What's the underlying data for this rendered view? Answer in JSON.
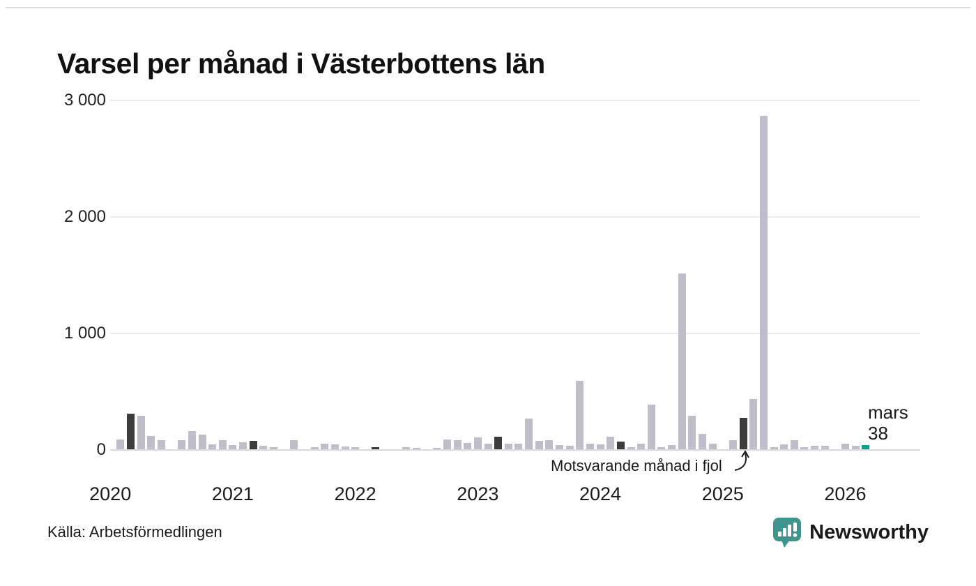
{
  "title": "Varsel per månad i Västerbottens län",
  "source": "Källa: Arbetsförmedlingen",
  "annotation": {
    "text": "Motsvarande månad i fjol"
  },
  "latest_label": {
    "month": "mars",
    "value": "38"
  },
  "brand": {
    "name": "Newsworthy",
    "color": "#3f948d"
  },
  "colors": {
    "bar": "#c0bdcb",
    "highlight_bar": "#3b3b3b",
    "latest_bar": "#109b8e",
    "grid": "#ebebf0",
    "axis": "#d8d8de",
    "text": "#1a1a1a"
  },
  "chart_data": {
    "type": "bar",
    "title": "Varsel per månad i Västerbottens län",
    "xlabel": "",
    "ylabel": "",
    "ylim": [
      0,
      3000
    ],
    "y_ticks": [
      0,
      1000,
      2000,
      3000
    ],
    "y_tick_labels": [
      "0",
      "1 000",
      "2 000",
      "3 000"
    ],
    "x_tick_labels": [
      "2020",
      "2021",
      "2022",
      "2023",
      "2024",
      "2025",
      "2026"
    ],
    "grid": "horizontal",
    "legend": "none",
    "years": [
      {
        "year": "2020",
        "values": [
          0,
          85,
          305,
          290,
          115,
          80,
          0,
          75,
          155,
          125,
          40,
          75
        ]
      },
      {
        "year": "2021",
        "values": [
          35,
          60,
          70,
          30,
          15,
          0,
          80,
          0,
          15,
          50,
          40,
          25
        ]
      },
      {
        "year": "2022",
        "values": [
          20,
          0,
          15,
          0,
          0,
          20,
          10,
          0,
          10,
          85,
          75,
          55
        ]
      },
      {
        "year": "2023",
        "values": [
          100,
          45,
          110,
          50,
          45,
          265,
          70,
          75,
          35,
          30,
          585,
          50
        ]
      },
      {
        "year": "2024",
        "values": [
          40,
          110,
          65,
          15,
          45,
          380,
          20,
          35,
          1505,
          290,
          130,
          50
        ]
      },
      {
        "year": "2025",
        "values": [
          0,
          80,
          270,
          430,
          2860,
          15,
          40,
          75,
          15,
          30,
          30,
          0
        ]
      },
      {
        "year": "2026",
        "values": [
          50,
          30,
          38
        ]
      }
    ],
    "highlighted_month_index": 2,
    "highlighted_month_note": "Motsvarande månad i fjol",
    "latest": {
      "year": "2026",
      "month_index": 2,
      "month_label": "mars",
      "value": 38
    }
  }
}
